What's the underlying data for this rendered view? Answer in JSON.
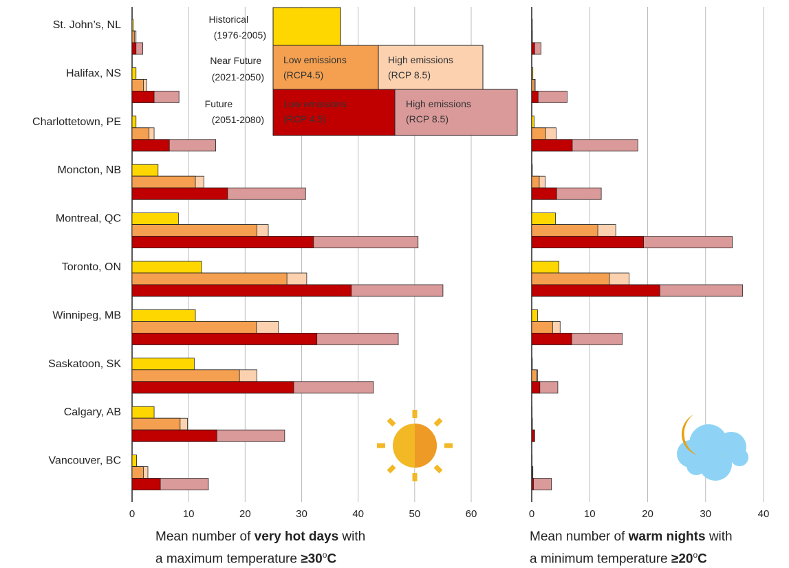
{
  "chart_data": [
    {
      "type": "bar",
      "orientation": "horizontal",
      "categories": [
        "St. John’s, NL",
        "Halifax, NS",
        "Charlottetown, PE",
        "Moncton, NB",
        "Montreal, QC",
        "Toronto, ON",
        "Winnipeg, MB",
        "Saskatoon, SK",
        "Calgary, AB",
        "Vancouver, BC"
      ],
      "series": [
        {
          "name": "Historical (1976-2005)",
          "values": [
            0.2,
            0.7,
            0.7,
            4.6,
            8.2,
            12.3,
            11.2,
            11.0,
            3.9,
            0.8
          ]
        },
        {
          "name": "Near Future (2021-2050) Low emissions (RCP4.5)",
          "values": [
            0.4,
            2.0,
            3.0,
            11.2,
            22.1,
            27.4,
            22.0,
            19.0,
            8.5,
            2.0
          ]
        },
        {
          "name": "Near Future (2021-2050) High emissions (RCP 8.5)",
          "values": [
            0.7,
            2.6,
            3.9,
            12.7,
            24.1,
            30.9,
            25.9,
            22.1,
            9.8,
            2.8
          ]
        },
        {
          "name": "Future (2051-2080) Low emissions (RCP 4.5)",
          "values": [
            0.7,
            3.9,
            6.6,
            16.9,
            32.1,
            38.8,
            32.7,
            28.6,
            15.0,
            5.0
          ]
        },
        {
          "name": "Future (2051-2080) High emissions (RCP 8.5)",
          "values": [
            1.9,
            8.3,
            14.8,
            30.7,
            50.6,
            55.0,
            47.1,
            42.7,
            27.0,
            13.5
          ]
        }
      ],
      "xlim": [
        0,
        60
      ],
      "xticks": [
        "0",
        "10",
        "20",
        "30",
        "40",
        "50",
        "60"
      ],
      "xlabel_line1_prefix": "Mean number of ",
      "xlabel_line1_bold": "very hot days",
      "xlabel_line1_suffix": " with",
      "xlabel_line2_prefix": "a maximum temperature ",
      "xlabel_line2_bold": "≥30",
      "xlabel_line2_sup": "o",
      "xlabel_line2_bold_end": "C",
      "icon": "sun-icon"
    },
    {
      "type": "bar",
      "orientation": "horizontal",
      "categories": [
        "St. John’s, NL",
        "Halifax, NS",
        "Charlottetown, PE",
        "Moncton, NB",
        "Montreal, QC",
        "Toronto, ON",
        "Winnipeg, MB",
        "Saskatoon, SK",
        "Calgary, AB",
        "Vancouver, BC"
      ],
      "series": [
        {
          "name": "Historical (1976-2005)",
          "values": [
            0.1,
            0.2,
            0.4,
            0.1,
            4.1,
            4.7,
            1.0,
            0.1,
            0.0,
            0.0
          ]
        },
        {
          "name": "Near Future (2021-2050) Low emissions (RCP4.5)",
          "values": [
            0.1,
            0.4,
            2.4,
            1.3,
            11.4,
            13.4,
            3.6,
            0.8,
            0.1,
            0.1
          ]
        },
        {
          "name": "Near Future (2021-2050) High emissions (RCP 8.5)",
          "values": [
            0.1,
            0.6,
            4.2,
            2.3,
            14.5,
            16.8,
            4.9,
            1.0,
            0.1,
            0.2
          ]
        },
        {
          "name": "Future (2051-2080) Low emissions (RCP 4.5)",
          "values": [
            0.5,
            1.1,
            7.0,
            4.3,
            19.3,
            22.1,
            6.9,
            1.4,
            0.5,
            0.3
          ]
        },
        {
          "name": "Future (2051-2080) High emissions (RCP 8.5)",
          "values": [
            1.6,
            6.1,
            18.3,
            12.0,
            34.6,
            36.4,
            15.6,
            4.5,
            0.5,
            3.4
          ]
        }
      ],
      "xlim": [
        0,
        40
      ],
      "xticks": [
        "0",
        "10",
        "20",
        "30",
        "40"
      ],
      "xlabel_line1_prefix": "Mean number of ",
      "xlabel_line1_bold": "warm nights",
      "xlabel_line1_suffix": " with",
      "xlabel_line2_prefix": "a minimum temperature ",
      "xlabel_line2_bold": "≥20",
      "xlabel_line2_sup": "o",
      "xlabel_line2_bold_end": "C",
      "icon": "moon-cloud-icon"
    }
  ],
  "legend": {
    "historical_label": [
      "Historical",
      "(1976-2005)"
    ],
    "near_label": [
      "Near Future",
      "(2021-2050)"
    ],
    "future_label": [
      "Future",
      "(2051-2080)"
    ],
    "near_low": [
      "Low emissions",
      "(RCP4.5)"
    ],
    "near_high": [
      "High emissions",
      "(RCP 8.5)"
    ],
    "future_low": [
      "Low emissions",
      "(RCP 4.5)"
    ],
    "future_high": [
      "High emissions",
      "(RCP 8.5)"
    ]
  },
  "colors": {
    "historical": "#FFD700",
    "near_low": "#F4A050",
    "near_high": "#FBD1B0",
    "future_low": "#C00000",
    "future_high": "#DA9A9A",
    "grid": "#BBBBBB"
  }
}
